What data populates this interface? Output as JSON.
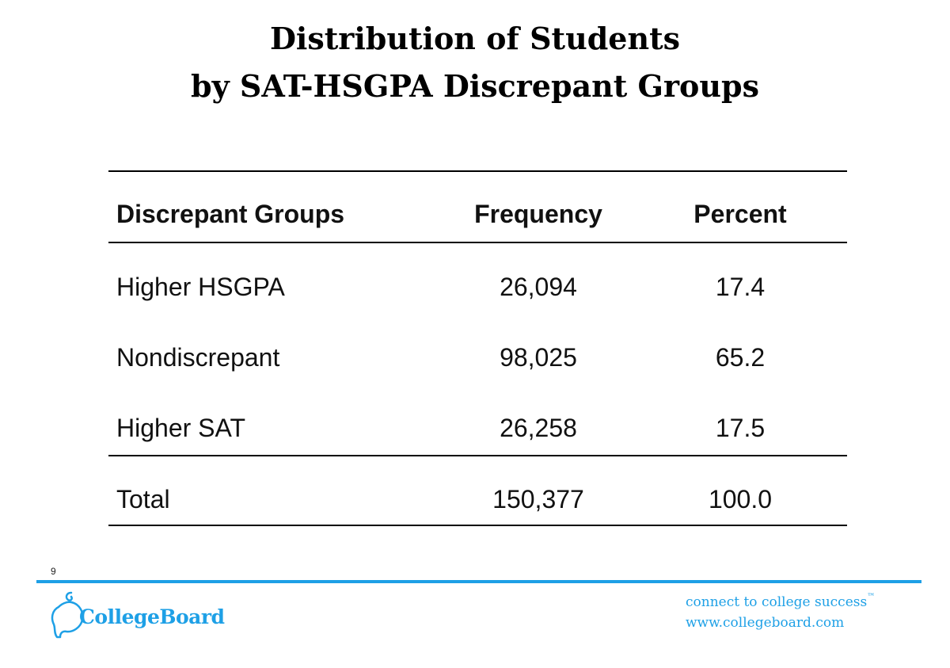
{
  "title": {
    "line1": "Distribution of Students",
    "line2": "by SAT-HSGPA Discrepant Groups"
  },
  "table": {
    "headers": [
      "Discrepant Groups",
      "Frequency",
      "Percent"
    ],
    "rows": [
      [
        "Higher HSGPA",
        "26,094",
        "17.4"
      ],
      [
        "Nondiscrepant",
        "98,025",
        "65.2"
      ],
      [
        "Higher SAT",
        "26,258",
        "17.5"
      ]
    ],
    "total": [
      "Total",
      "150,377",
      "100.0"
    ]
  },
  "footer": {
    "page_number": "9",
    "logo_text": "CollegeBoard",
    "tagline": "connect to college success",
    "trademark": "™",
    "website": "www.collegeboard.com",
    "accent_color": "#1ea0e6"
  }
}
